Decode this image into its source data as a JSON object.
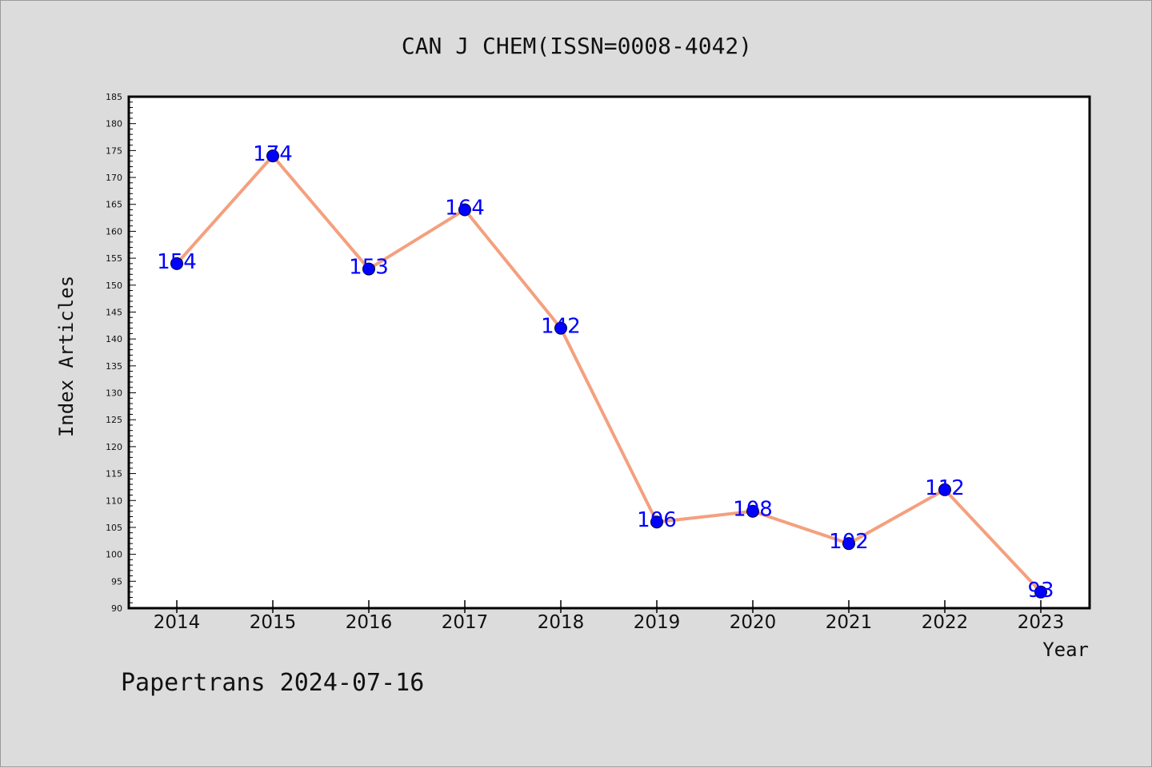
{
  "chart_data": {
    "type": "line",
    "title": "CAN J CHEM(ISSN=0008-4042)",
    "xlabel": "Year",
    "ylabel": "Index Articles",
    "categories": [
      "2014",
      "2015",
      "2016",
      "2017",
      "2018",
      "2019",
      "2020",
      "2021",
      "2022",
      "2023"
    ],
    "series": [
      {
        "values": [
          154,
          174,
          153,
          164,
          142,
          106,
          108,
          102,
          112,
          93
        ]
      }
    ],
    "ylim": [
      90,
      185
    ],
    "ytick_step": 5,
    "grid": false,
    "legend": "none",
    "line_color": "#f4a07e",
    "marker_color": "#0000ff",
    "data_label_color": "#0000ff",
    "plot_background": "#ffffff",
    "page_background": "#dcdcdc"
  },
  "footer": {
    "text": "Papertrans 2024-07-16"
  }
}
